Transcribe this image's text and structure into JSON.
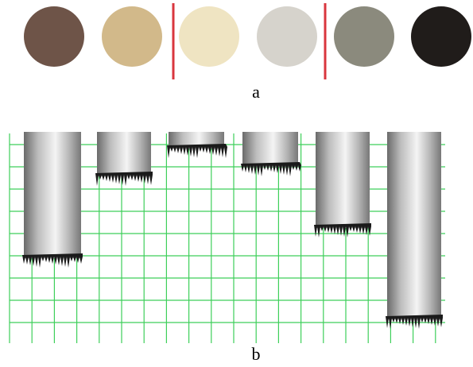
{
  "panels": [
    {
      "label": "a",
      "swatches": [
        "#6e5448",
        "#d2b98a",
        "#efe4c2",
        "#d6d3cc",
        "#8b8a7d",
        "#201c1a"
      ],
      "separator_color": "#d9363e"
    },
    {
      "label": "b",
      "grid_color": "#3ecf5a"
    }
  ]
}
